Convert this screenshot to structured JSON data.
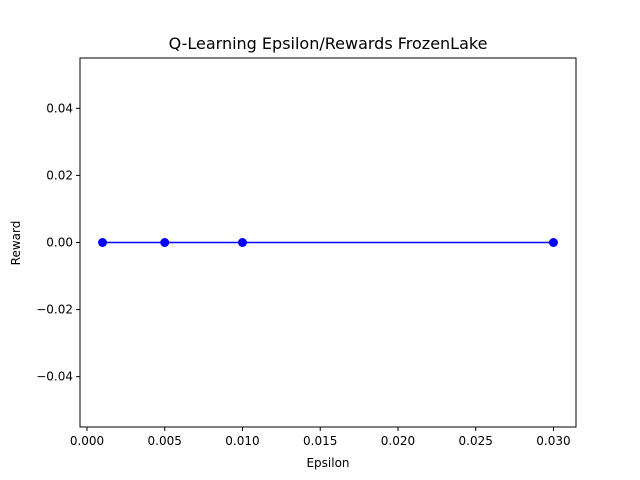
{
  "chart_data": {
    "type": "line",
    "title": "Q-Learning Epsilon/Rewards FrozenLake",
    "xlabel": "Epsilon",
    "ylabel": "Reward",
    "x": [
      0.001,
      0.005,
      0.01,
      0.03
    ],
    "series": [
      {
        "values": [
          0.0,
          0.0,
          0.0,
          0.0
        ],
        "color": "#0000ff",
        "marker": "circle"
      }
    ],
    "xlim": [
      -0.00045,
      0.03145
    ],
    "ylim": [
      -0.055,
      0.055
    ],
    "xticks": [
      0.0,
      0.005,
      0.01,
      0.015,
      0.02,
      0.025,
      0.03
    ],
    "xtick_labels": [
      "0.000",
      "0.005",
      "0.010",
      "0.015",
      "0.020",
      "0.025",
      "0.030"
    ],
    "yticks": [
      -0.04,
      -0.02,
      0.0,
      0.02,
      0.04
    ],
    "ytick_labels": [
      "−0.04",
      "−0.02",
      "0.00",
      "0.02",
      "0.04"
    ],
    "grid": false,
    "legend": false
  }
}
